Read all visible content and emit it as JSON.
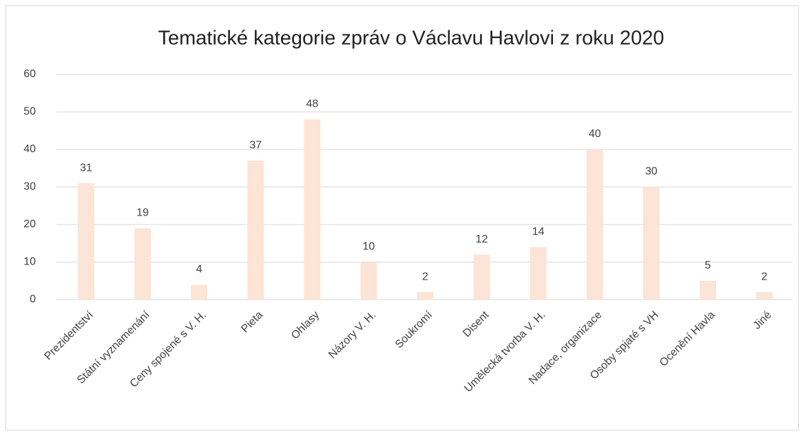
{
  "chart_data": {
    "type": "bar",
    "title": "Tematické kategorie zpráv o Václavu Havlovi z roku 2020",
    "categories": [
      "Prezidentství",
      "Státní vyznamenání",
      "Ceny spojené s V. H.",
      "Pieta",
      "Ohlasy",
      "Názory V. H.",
      "Soukromí",
      "Disent",
      "Umělecká tvorba V. H.",
      "Nadace, organizace",
      "Osoby spjaté s VH",
      "Ocenění Havla",
      "Jiné"
    ],
    "values": [
      31,
      19,
      4,
      37,
      48,
      10,
      2,
      12,
      14,
      40,
      30,
      5,
      2
    ],
    "color": "#fce4d6",
    "ylim": [
      0,
      60
    ],
    "yticks": [
      0,
      10,
      20,
      30,
      40,
      50,
      60
    ],
    "grid": true
  }
}
